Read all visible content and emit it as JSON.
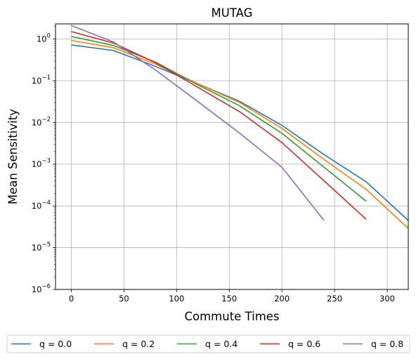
{
  "chart_data": {
    "type": "line",
    "title": "MUTAG",
    "xlabel": "Commute Times",
    "ylabel": "Mean Sensitivity",
    "xlim": [
      -15,
      320
    ],
    "ylim": [
      1e-06,
      2.3
    ],
    "yscale": "log",
    "grid": true,
    "legend_position": "bottom",
    "x_ticks": [
      0,
      50,
      100,
      150,
      200,
      250,
      300
    ],
    "x_tick_labels": [
      "0",
      "50",
      "100",
      "150",
      "200",
      "250",
      "300"
    ],
    "y_ticks": [
      1e-06,
      1e-05,
      0.0001,
      0.001,
      0.01,
      0.1,
      1
    ],
    "y_tick_labels": [
      {
        "base": "10",
        "exp": "−6"
      },
      {
        "base": "10",
        "exp": "−5"
      },
      {
        "base": "10",
        "exp": "−4"
      },
      {
        "base": "10",
        "exp": "−3"
      },
      {
        "base": "10",
        "exp": "−2"
      },
      {
        "base": "10",
        "exp": "−1"
      },
      {
        "base": "10",
        "exp": "0"
      }
    ],
    "series": [
      {
        "name": "q = 0.0",
        "color": "#1f77b4",
        "x": [
          0,
          40,
          80,
          120,
          160,
          200,
          240,
          280,
          320
        ],
        "y": [
          0.72,
          0.53,
          0.22,
          0.085,
          0.032,
          0.0085,
          0.0017,
          0.00038,
          4.5e-05
        ]
      },
      {
        "name": "q = 0.2",
        "color": "#ff7f0e",
        "x": [
          0,
          40,
          80,
          120,
          160,
          200,
          240,
          280,
          320
        ],
        "y": [
          0.92,
          0.62,
          0.25,
          0.085,
          0.03,
          0.0072,
          0.0013,
          0.00025,
          2.9e-05
        ]
      },
      {
        "name": "q = 0.4",
        "color": "#2ca02c",
        "x": [
          0,
          40,
          80,
          120,
          160,
          200,
          240,
          280
        ],
        "y": [
          1.15,
          0.7,
          0.28,
          0.08,
          0.025,
          0.0055,
          0.00085,
          0.00013
        ]
      },
      {
        "name": "q = 0.6",
        "color": "#d62728",
        "x": [
          0,
          40,
          80,
          120,
          160,
          200,
          240,
          280
        ],
        "y": [
          1.5,
          0.8,
          0.27,
          0.07,
          0.018,
          0.0033,
          0.0004,
          4.8e-05
        ]
      },
      {
        "name": "q = 0.8",
        "color": "#9467bd",
        "x": [
          0,
          40,
          80,
          120,
          160,
          200,
          240
        ],
        "y": [
          2.1,
          0.85,
          0.18,
          0.032,
          0.0055,
          0.00085,
          4.5e-05
        ]
      }
    ]
  }
}
